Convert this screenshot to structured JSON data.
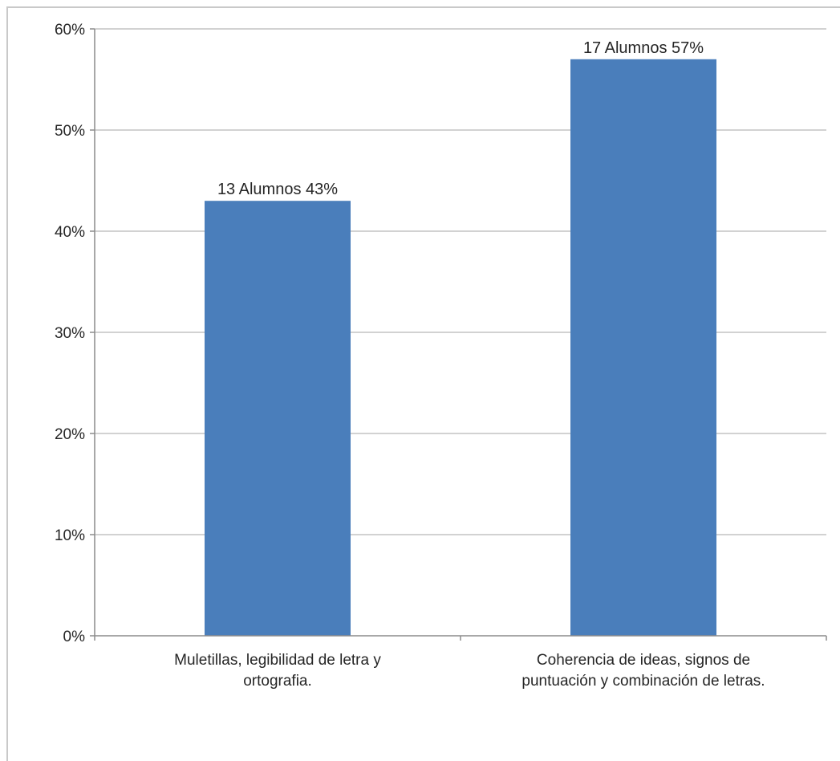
{
  "chart_data": {
    "type": "bar",
    "categories": [
      [
        "Muletillas, legibilidad de letra y",
        "ortografia."
      ],
      [
        "Coherencia de ideas, signos de",
        "puntuación y combinación de letras."
      ]
    ],
    "values": [
      43,
      57
    ],
    "data_labels": [
      "13 Alumnos 43%",
      "17 Alumnos 57%"
    ],
    "y_ticks": [
      "0%",
      "10%",
      "20%",
      "30%",
      "40%",
      "50%",
      "60%"
    ],
    "y_tick_values": [
      0,
      10,
      20,
      30,
      40,
      50,
      60
    ],
    "ylim": [
      0,
      60
    ],
    "grid": true,
    "legend": "none",
    "bar_color": "#4a7ebb"
  }
}
